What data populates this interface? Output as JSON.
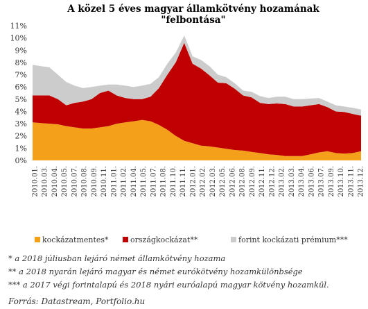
{
  "chart_data": {
    "type": "area",
    "stacked": true,
    "title": "A közel 5 éves magyar államkötvény hozamának \"felbontása\"",
    "ylim": [
      0,
      11
    ],
    "y_ticks": [
      "0%",
      "1%",
      "2%",
      "3%",
      "4%",
      "5%",
      "6%",
      "7%",
      "8%",
      "9%",
      "10%",
      "11%"
    ],
    "x_ticks": [
      "2010.01.",
      "2010.03.",
      "2010.04.",
      "2010.05.",
      "2010.07.",
      "2010.08.",
      "2010.09.",
      "2010.11.",
      "2011.01.",
      "2011.02.",
      "2011.04.",
      "2011.05.",
      "2011.07.",
      "2011.08.",
      "2011.10.",
      "2011.11.",
      "2012.01.",
      "2012.02.",
      "2012.03.",
      "2012.05.",
      "2012.06.",
      "2012.08.",
      "2012.09.",
      "2012.11.",
      "2012.12.",
      "2013.02.",
      "2013.03.",
      "2013.04.",
      "2013.06.",
      "2013.07.",
      "2013.09.",
      "2013.10.",
      "2013.11.",
      "2013.12."
    ],
    "grid": false,
    "legend_position": "bottom",
    "series": [
      {
        "name": "kockázatmentes*",
        "color": "#f5a01a",
        "values": [
          3.1,
          3.05,
          3.0,
          2.95,
          2.8,
          2.7,
          2.6,
          2.6,
          2.7,
          2.8,
          3.0,
          3.1,
          3.2,
          3.3,
          3.2,
          2.9,
          2.5,
          2.0,
          1.6,
          1.4,
          1.2,
          1.15,
          1.05,
          0.95,
          0.85,
          0.8,
          0.7,
          0.6,
          0.5,
          0.45,
          0.35,
          0.35,
          0.35,
          0.5,
          0.65,
          0.75,
          0.6,
          0.55,
          0.6,
          0.75
        ]
      },
      {
        "name": "országkockázat**",
        "color": "#c00000",
        "values": [
          2.2,
          2.25,
          2.3,
          2.05,
          1.7,
          2.0,
          2.2,
          2.4,
          2.8,
          2.9,
          2.3,
          2.0,
          1.8,
          1.7,
          2.0,
          3.0,
          4.5,
          6.0,
          8.0,
          6.5,
          6.3,
          5.8,
          5.3,
          5.35,
          5.0,
          4.5,
          4.45,
          4.1,
          4.1,
          4.2,
          4.25,
          4.05,
          4.05,
          4.0,
          3.95,
          3.6,
          3.4,
          3.4,
          3.2,
          2.9
        ]
      },
      {
        "name": "forint kockázati prémium***",
        "color": "#cccccc",
        "values": [
          2.5,
          2.4,
          2.3,
          2.0,
          1.9,
          1.4,
          1.1,
          1.0,
          0.6,
          0.5,
          0.9,
          1.0,
          1.0,
          1.1,
          1.05,
          0.9,
          0.9,
          0.8,
          0.6,
          0.6,
          0.7,
          0.75,
          0.65,
          0.5,
          0.45,
          0.4,
          0.45,
          0.55,
          0.5,
          0.55,
          0.6,
          0.6,
          0.6,
          0.55,
          0.5,
          0.45,
          0.5,
          0.45,
          0.5,
          0.5
        ]
      }
    ]
  },
  "notes": [
    "* a 2018 júliusban lejáró német államkötvény hozama",
    "** a 2018 nyarán lejáró magyar és német eurókötvény hozamkülönbsége",
    "*** a 2017 végi forintalapú és 2018 nyári euróalapú magyar kötvény hozamkül."
  ],
  "source": "Forrás: Datastream, Portfolio.hu"
}
